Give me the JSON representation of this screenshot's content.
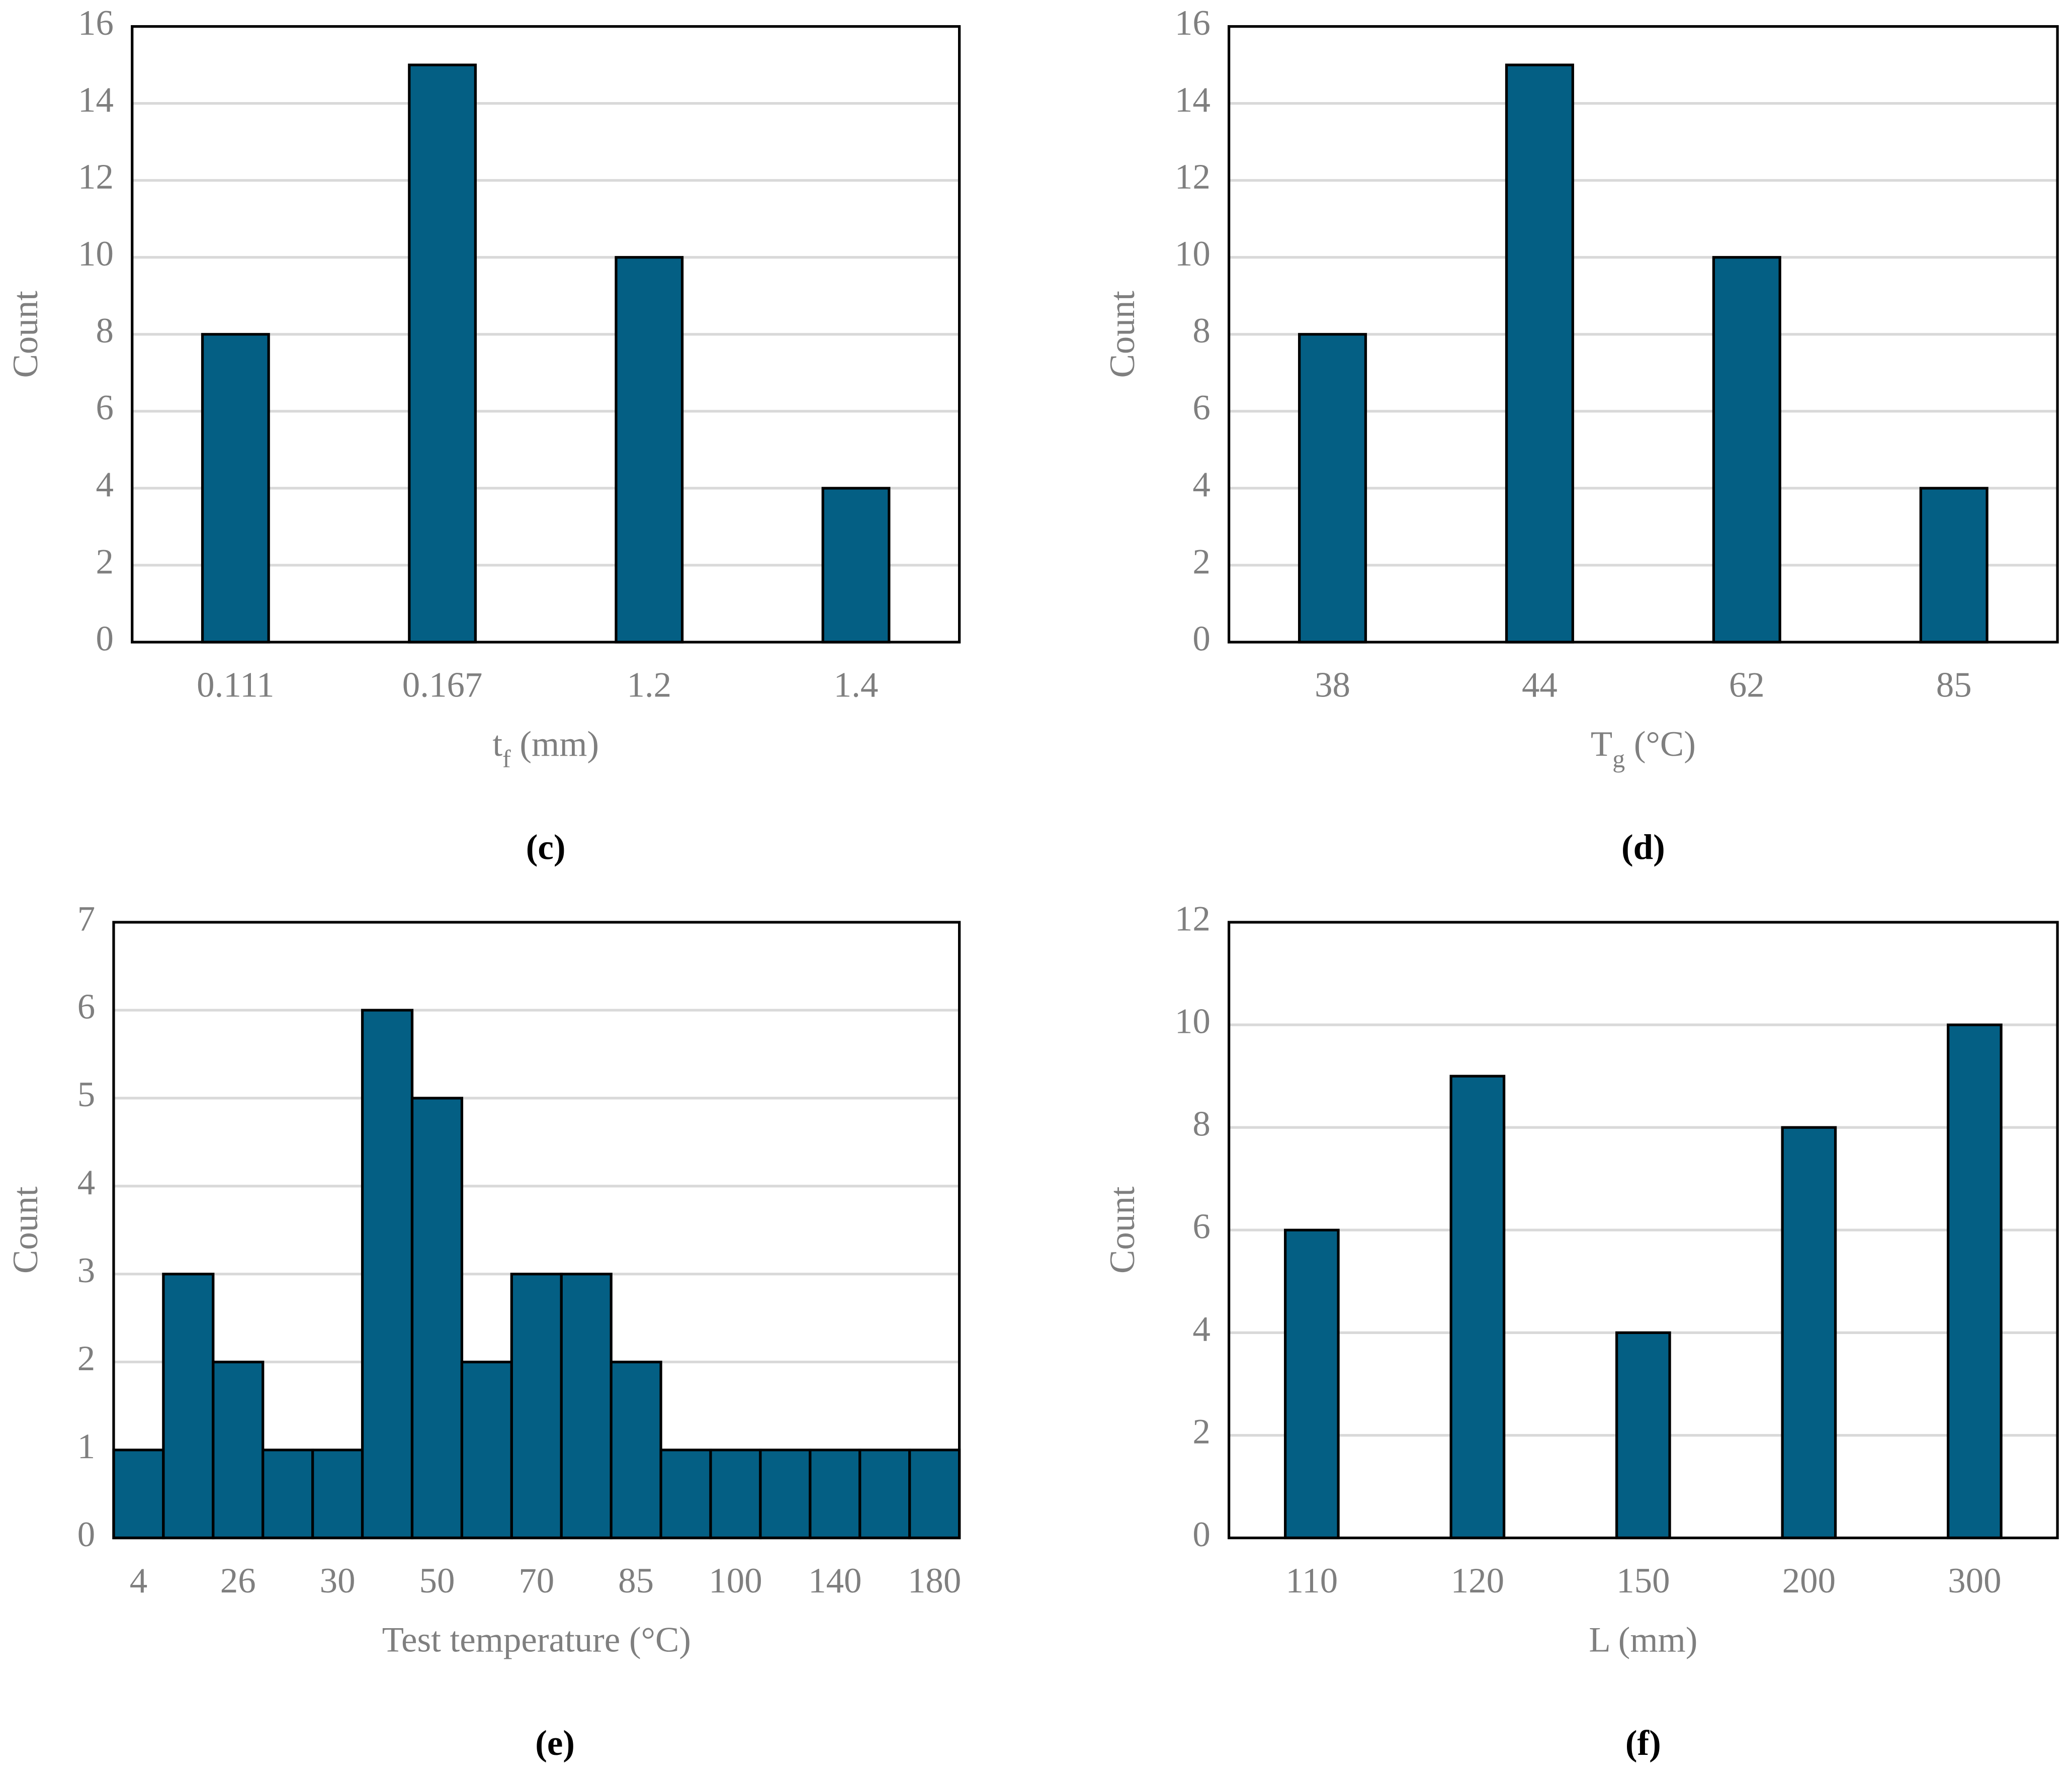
{
  "chart_data": [
    {
      "type": "bar",
      "caption": "(c)",
      "ylabel": "Count",
      "xlabel": [
        {
          "text": "t"
        },
        {
          "text": "f",
          "subscript": true
        },
        {
          "text": " (mm)"
        }
      ],
      "categories": [
        "0.111",
        "0.167",
        "1.2",
        "1.4"
      ],
      "values": [
        8,
        15,
        10,
        4
      ],
      "color": "#045f84",
      "ylim": [
        0,
        16
      ],
      "yticks": [
        0,
        2,
        4,
        6,
        8,
        10,
        12,
        14,
        16
      ],
      "grid": true
    },
    {
      "type": "bar",
      "caption": "(d)",
      "ylabel": "Count",
      "xlabel": [
        {
          "text": "T"
        },
        {
          "text": "g",
          "subscript": true
        },
        {
          "text": " (°C)"
        }
      ],
      "categories": [
        "38",
        "44",
        "62",
        "85"
      ],
      "values": [
        8,
        15,
        10,
        4
      ],
      "color": "#045f84",
      "ylim": [
        0,
        16
      ],
      "yticks": [
        0,
        2,
        4,
        6,
        8,
        10,
        12,
        14,
        16
      ],
      "grid": true
    },
    {
      "type": "bar",
      "caption": "(e)",
      "ylabel": "Count",
      "xlabel": [
        {
          "text": "Test temperature (°C)"
        }
      ],
      "categories": [
        "4",
        null,
        "26",
        null,
        "30",
        null,
        "50",
        null,
        "70",
        null,
        "85",
        null,
        "100",
        null,
        "140",
        null,
        "180"
      ],
      "values": [
        1,
        3,
        2,
        1,
        1,
        6,
        5,
        2,
        3,
        3,
        2,
        1,
        1,
        1,
        1,
        1,
        1
      ],
      "color": "#045f84",
      "ylim": [
        0,
        7
      ],
      "yticks": [
        0,
        1,
        2,
        3,
        4,
        5,
        6,
        7
      ],
      "grid": true
    },
    {
      "type": "bar",
      "caption": "(f)",
      "ylabel": "Count",
      "xlabel": [
        {
          "text": "L (mm)"
        }
      ],
      "categories": [
        "110",
        "120",
        "150",
        "200",
        "300"
      ],
      "values": [
        6,
        9,
        4,
        8,
        10
      ],
      "color": "#045f84",
      "ylim": [
        0,
        12
      ],
      "yticks": [
        0,
        2,
        4,
        6,
        8,
        10,
        12
      ],
      "grid": true
    }
  ]
}
